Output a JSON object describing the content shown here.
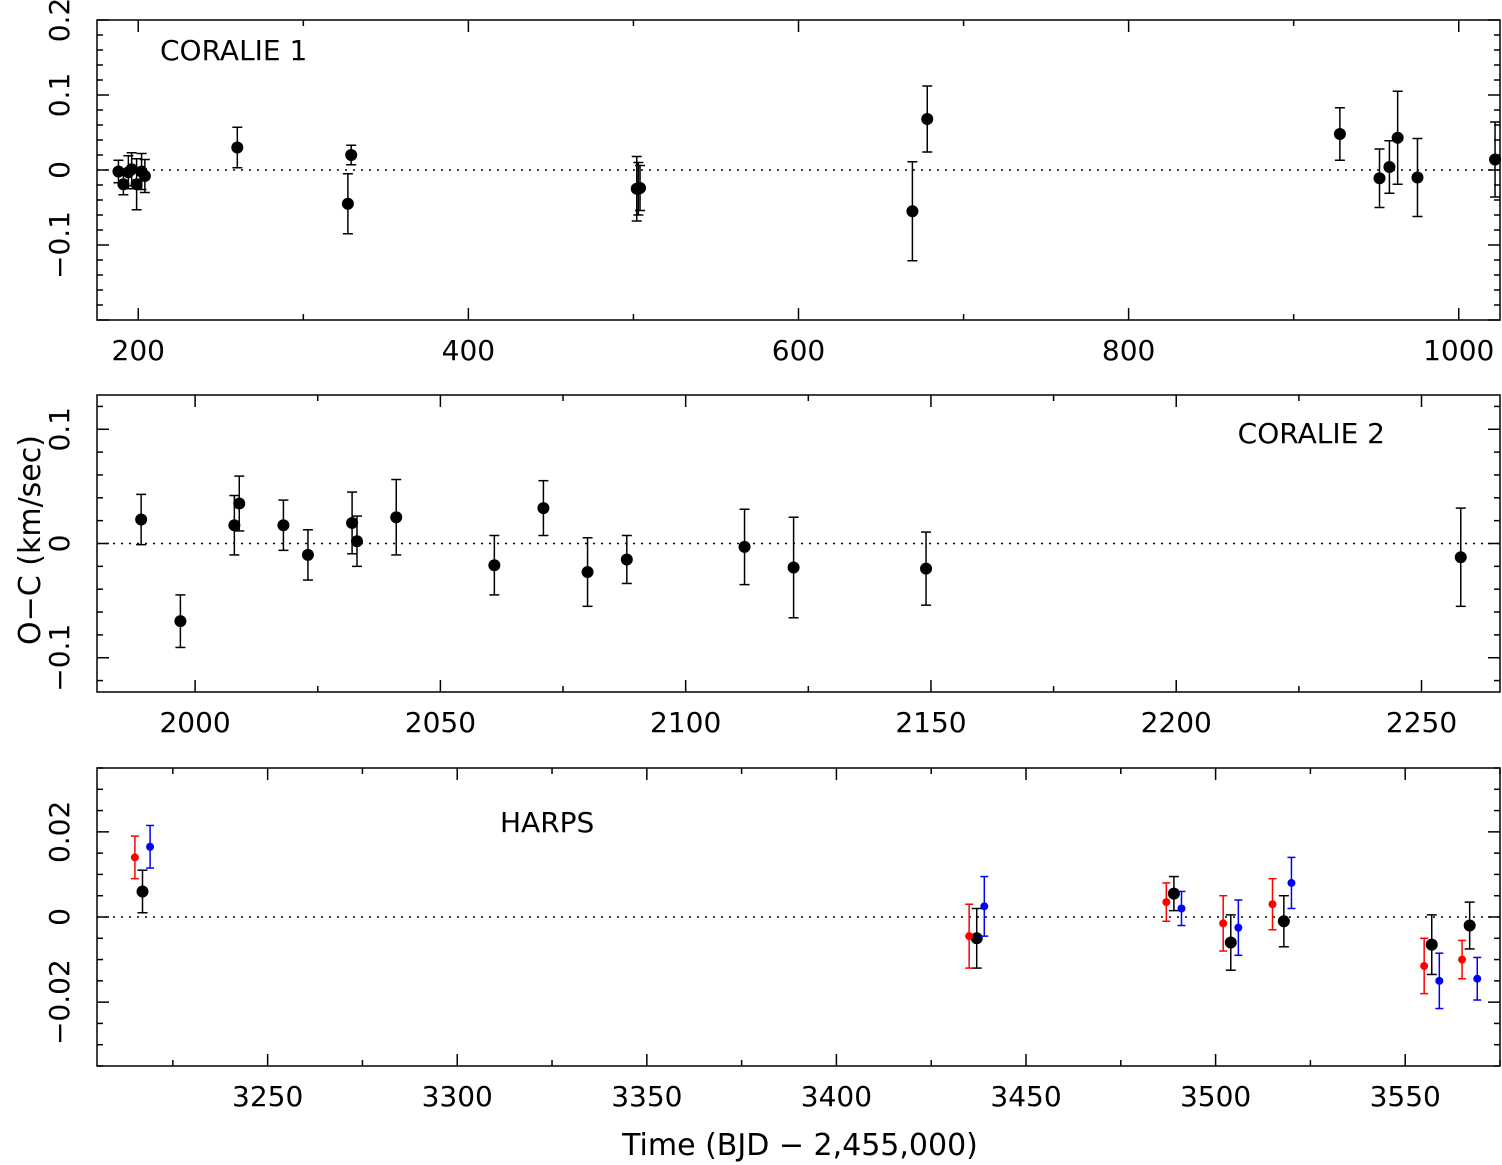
{
  "chart_data": [
    {
      "type": "scatter",
      "panel_label": "CORALIE 1",
      "xlim": [
        175,
        1025
      ],
      "ylim": [
        -0.2,
        0.2
      ],
      "xticks": [
        200,
        400,
        600,
        800,
        1000
      ],
      "yticks": [
        -0.1,
        0,
        0.1,
        0.2
      ],
      "ytick_labels": [
        "−0.1",
        "0",
        "0.1",
        "0.2"
      ],
      "series": [
        {
          "name": "CORALIE 1",
          "color": "#000000",
          "marker": "large",
          "points": [
            {
              "x": 188,
              "y": -0.002,
              "err": 0.015
            },
            {
              "x": 191,
              "y": -0.019,
              "err": 0.014
            },
            {
              "x": 194,
              "y": -0.003,
              "err": 0.022
            },
            {
              "x": 196,
              "y": 0.001,
              "err": 0.022
            },
            {
              "x": 199,
              "y": -0.019,
              "err": 0.034
            },
            {
              "x": 202,
              "y": -0.002,
              "err": 0.024
            },
            {
              "x": 204,
              "y": -0.008,
              "err": 0.022
            },
            {
              "x": 260,
              "y": 0.03,
              "err": 0.027
            },
            {
              "x": 327,
              "y": -0.045,
              "err": 0.04
            },
            {
              "x": 329,
              "y": 0.02,
              "err": 0.013
            },
            {
              "x": 502,
              "y": -0.025,
              "err": 0.043
            },
            {
              "x": 503,
              "y": -0.025,
              "err": 0.035
            },
            {
              "x": 504,
              "y": -0.024,
              "err": 0.03
            },
            {
              "x": 669,
              "y": -0.055,
              "err": 0.066
            },
            {
              "x": 678,
              "y": 0.068,
              "err": 0.044
            },
            {
              "x": 928,
              "y": 0.048,
              "err": 0.035
            },
            {
              "x": 952,
              "y": -0.011,
              "err": 0.039
            },
            {
              "x": 958,
              "y": 0.004,
              "err": 0.035
            },
            {
              "x": 963,
              "y": 0.043,
              "err": 0.062
            },
            {
              "x": 975,
              "y": -0.01,
              "err": 0.052
            },
            {
              "x": 1022,
              "y": 0.014,
              "err": 0.05
            }
          ]
        }
      ]
    },
    {
      "type": "scatter",
      "panel_label": "CORALIE 2",
      "ylabel": "O−C (km/sec)",
      "xlim": [
        1980,
        2266
      ],
      "ylim": [
        -0.13,
        0.13
      ],
      "xticks": [
        2000,
        2050,
        2100,
        2150,
        2200,
        2250
      ],
      "yticks": [
        -0.1,
        0,
        0.1
      ],
      "ytick_labels": [
        "−0.1",
        "0",
        "0.1"
      ],
      "series": [
        {
          "name": "CORALIE 2",
          "color": "#000000",
          "marker": "large",
          "points": [
            {
              "x": 1989,
              "y": 0.021,
              "err": 0.022
            },
            {
              "x": 1997,
              "y": -0.068,
              "err": 0.023
            },
            {
              "x": 2008,
              "y": 0.016,
              "err": 0.026
            },
            {
              "x": 2009,
              "y": 0.035,
              "err": 0.024
            },
            {
              "x": 2018,
              "y": 0.016,
              "err": 0.022
            },
            {
              "x": 2023,
              "y": -0.01,
              "err": 0.022
            },
            {
              "x": 2032,
              "y": 0.018,
              "err": 0.027
            },
            {
              "x": 2033,
              "y": 0.002,
              "err": 0.022
            },
            {
              "x": 2041,
              "y": 0.023,
              "err": 0.033
            },
            {
              "x": 2061,
              "y": -0.019,
              "err": 0.026
            },
            {
              "x": 2071,
              "y": 0.031,
              "err": 0.024
            },
            {
              "x": 2080,
              "y": -0.025,
              "err": 0.03
            },
            {
              "x": 2088,
              "y": -0.014,
              "err": 0.021
            },
            {
              "x": 2112,
              "y": -0.003,
              "err": 0.033
            },
            {
              "x": 2122,
              "y": -0.021,
              "err": 0.044
            },
            {
              "x": 2149,
              "y": -0.022,
              "err": 0.032
            },
            {
              "x": 2258,
              "y": -0.012,
              "err": 0.043
            }
          ]
        }
      ]
    },
    {
      "type": "scatter",
      "panel_label": "HARPS",
      "xlabel": "Time (BJD − 2,455,000)",
      "xlim": [
        3205,
        3575
      ],
      "ylim": [
        -0.035,
        0.035
      ],
      "xticks": [
        3250,
        3300,
        3350,
        3400,
        3450,
        3500,
        3550
      ],
      "yticks": [
        -0.02,
        0,
        0.02
      ],
      "ytick_labels": [
        "−0.02",
        "0",
        "0.02"
      ],
      "series": [
        {
          "name": "black",
          "color": "#000000",
          "marker": "large",
          "points": [
            {
              "x": 3217,
              "y": 0.006,
              "err": 0.005
            },
            {
              "x": 3437,
              "y": -0.005,
              "err": 0.007
            },
            {
              "x": 3489,
              "y": 0.0055,
              "err": 0.004
            },
            {
              "x": 3504,
              "y": -0.006,
              "err": 0.0065
            },
            {
              "x": 3518,
              "y": -0.001,
              "err": 0.006
            },
            {
              "x": 3557,
              "y": -0.0065,
              "err": 0.007
            },
            {
              "x": 3567,
              "y": -0.002,
              "err": 0.0055
            }
          ]
        },
        {
          "name": "red",
          "color": "#ff0000",
          "marker": "small",
          "points": [
            {
              "x": 3215,
              "y": 0.014,
              "err": 0.005
            },
            {
              "x": 3435,
              "y": -0.0045,
              "err": 0.0075
            },
            {
              "x": 3487,
              "y": 0.0035,
              "err": 0.0045
            },
            {
              "x": 3502,
              "y": -0.0015,
              "err": 0.0065
            },
            {
              "x": 3515,
              "y": 0.003,
              "err": 0.006
            },
            {
              "x": 3555,
              "y": -0.0115,
              "err": 0.0065
            },
            {
              "x": 3565,
              "y": -0.01,
              "err": 0.0045
            }
          ]
        },
        {
          "name": "blue",
          "color": "#0000ff",
          "marker": "small",
          "points": [
            {
              "x": 3219,
              "y": 0.0165,
              "err": 0.005
            },
            {
              "x": 3439,
              "y": 0.0025,
              "err": 0.007
            },
            {
              "x": 3491,
              "y": 0.002,
              "err": 0.004
            },
            {
              "x": 3506,
              "y": -0.0025,
              "err": 0.0065
            },
            {
              "x": 3520,
              "y": 0.008,
              "err": 0.006
            },
            {
              "x": 3559,
              "y": -0.015,
              "err": 0.0065
            },
            {
              "x": 3569,
              "y": -0.0145,
              "err": 0.005
            }
          ]
        }
      ]
    }
  ]
}
